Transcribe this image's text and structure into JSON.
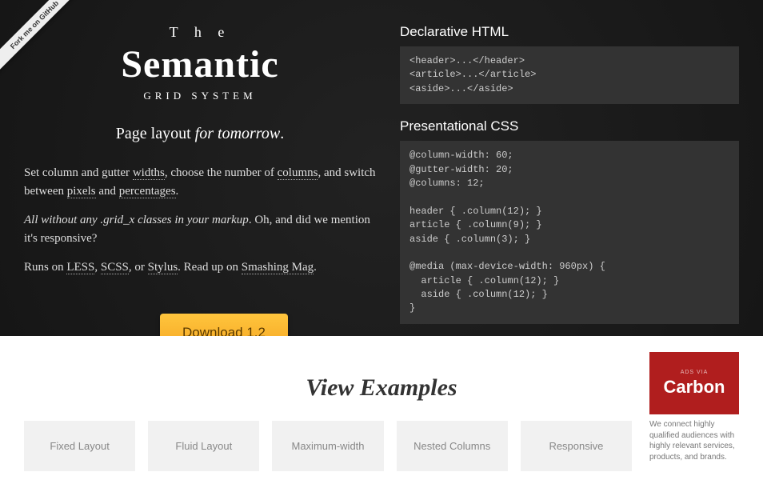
{
  "colors": {
    "dark_bg": "#1a1a1a",
    "code_bg": "#333333",
    "text_light": "#e8e8e8",
    "button_top": "#ffc53d",
    "button_bottom": "#f5a623",
    "button_text": "#5a3a00",
    "card_bg": "#f1f1f1",
    "card_text": "#888888",
    "carbon_bg": "#b01e1e"
  },
  "ribbon": {
    "label": "Fork me on GitHub"
  },
  "title": {
    "pre": "T h e",
    "main": "Semantic",
    "sub": "GRID SYSTEM"
  },
  "tagline": {
    "prefix": "Page layout ",
    "em": "for tomorrow",
    "suffix": "."
  },
  "paragraphs": {
    "p1_a": "Set column and gutter ",
    "p1_widths": "widths",
    "p1_b": ", choose the number of ",
    "p1_columns": "columns",
    "p1_c": ", and switch between ",
    "p1_pixels": "pixels",
    "p1_d": " and ",
    "p1_percentages": "percentages",
    "p1_e": ".",
    "p2_a": "All without any .grid_x classes in your markup",
    "p2_b": ". Oh, and did we mention it's responsive?",
    "p3_a": "Runs on ",
    "p3_less": "LESS",
    "p3_b": ", ",
    "p3_scss": "SCSS",
    "p3_c": ", or ",
    "p3_stylus": "Stylus",
    "p3_d": ". Read up on ",
    "p3_smashing": "Smashing Mag",
    "p3_e": "."
  },
  "code": {
    "html_heading": "Declarative HTML",
    "html_block": "<header>...</header>\n<article>...</article>\n<aside>...</aside>",
    "css_heading": "Presentational CSS",
    "css_block": "@column-width: 60;\n@gutter-width: 20;\n@columns: 12;\n\nheader { .column(12); }\narticle { .column(9); }\naside { .column(3); }\n\n@media (max-device-width: 960px) {\n  article { .column(12); }\n  aside { .column(12); }\n}"
  },
  "download": {
    "label": "Download 1.2"
  },
  "examples": {
    "heading": "View Examples",
    "items": [
      "Fixed Layout",
      "Fluid Layout",
      "Maximum-width",
      "Nested Columns",
      "Responsive"
    ]
  },
  "carbon": {
    "small": "ADS VIA",
    "big": "Carbon",
    "text": "We connect highly qualified audiences with highly relevant services, products, and brands."
  }
}
